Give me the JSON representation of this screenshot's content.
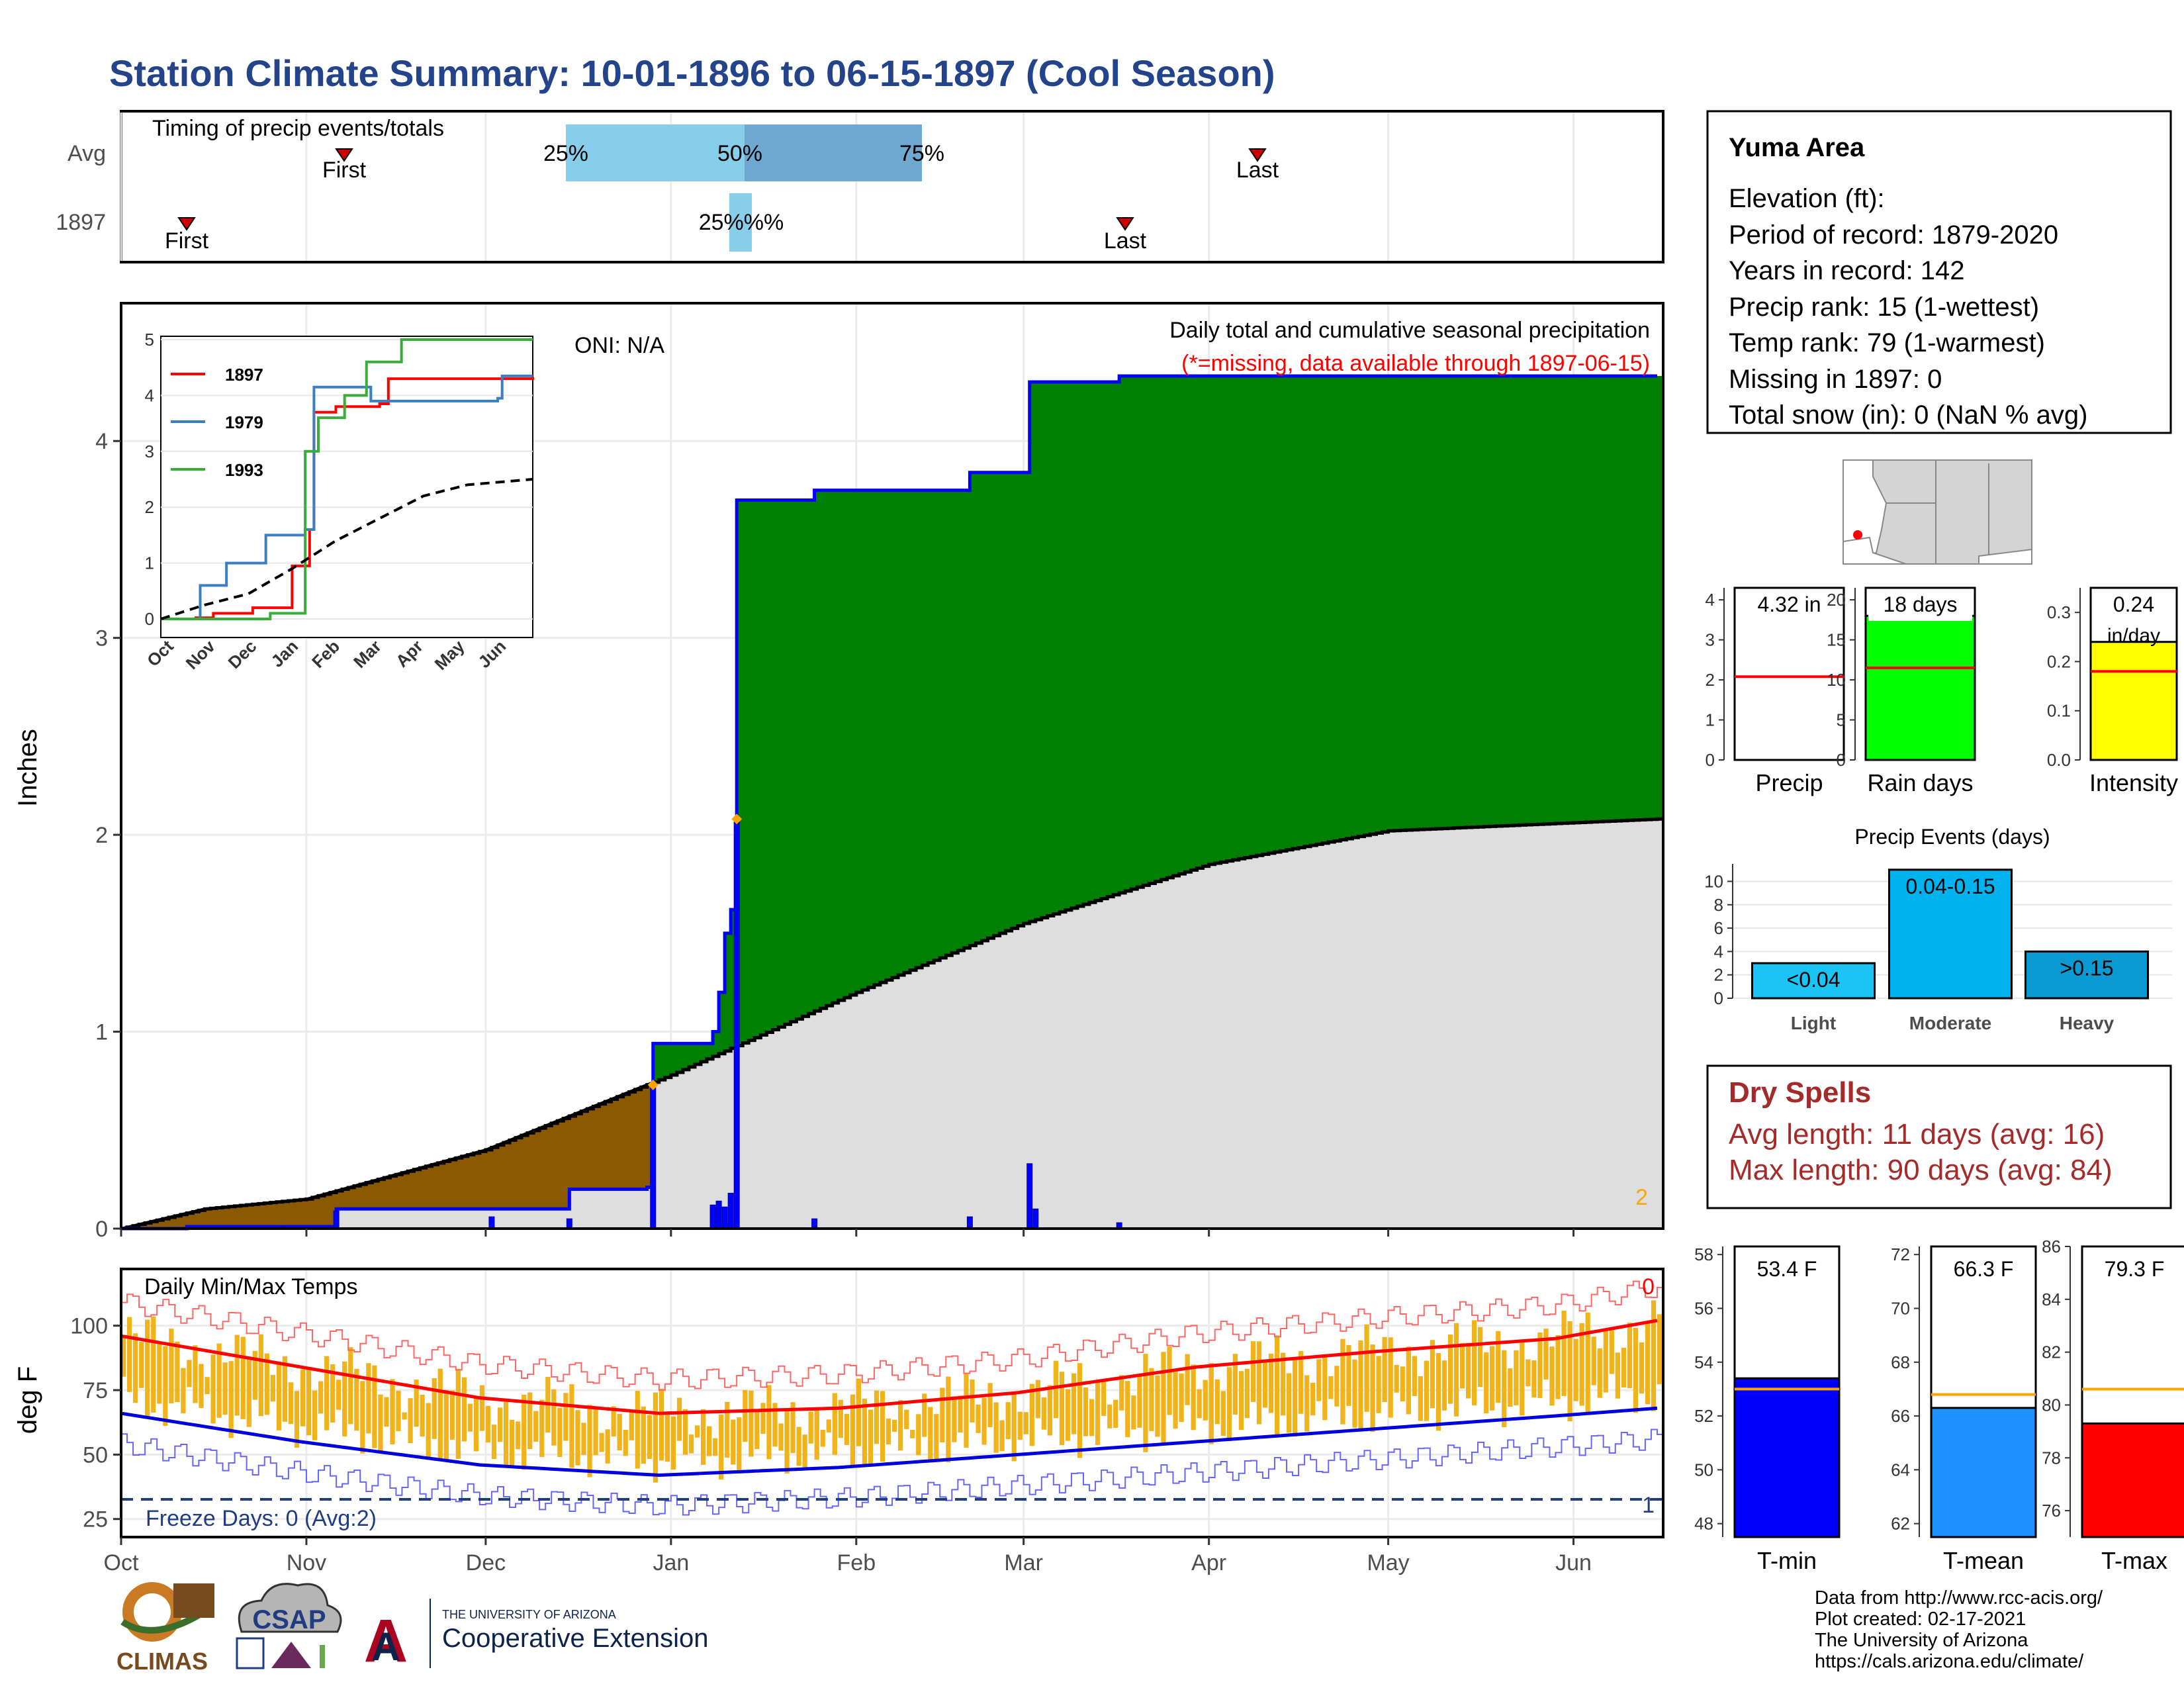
{
  "title": "Station Climate Summary: 10-01-1896 to 06-15-1897 (Cool Season)",
  "colors": {
    "title": "#23448a",
    "cumulative": "#008000",
    "avg_area": "#dedede",
    "deficit": "#8b5a00",
    "daily_precip": "#0000ff",
    "temp_bars": "#f0b31a",
    "tmax_line": "#ff0000",
    "tmin_line": "#0000dd",
    "dry_spells": "#a52a2a",
    "light": "#1bc4f5",
    "moderate": "#00b3ef",
    "heavy": "#0a9ad1"
  },
  "station": {
    "name": "Yuma Area",
    "elevation": "Elevation (ft):",
    "period": "Period of record: 1879-2020",
    "years": "Years in record: 142",
    "precip_rank": "Precip rank: 15 (1-wettest)",
    "temp_rank": "Temp rank: 79 (1-warmest)",
    "missing": "Missing in 1897: 0",
    "snow": "Total snow (in): 0 (NaN % avg)"
  },
  "timing": {
    "title": "Timing of precip events/totals",
    "rows": [
      "Avg",
      "1897"
    ],
    "avg": {
      "first_label": "First",
      "last_label": "Last",
      "p25": "25%",
      "p50": "50%",
      "p75": "75%"
    },
    "year": {
      "first_label": "First",
      "last_label": "Last",
      "p_label": "25%%%"
    }
  },
  "main_panel": {
    "ylabel": "Inches",
    "oni": "ONI: N/A",
    "subtitle": "Daily total and cumulative seasonal precipitation",
    "missing_note": "(*=missing, data available through 1897-06-15)",
    "corner_count": "2",
    "y_ticks": [
      "0",
      "1",
      "2",
      "3",
      "4"
    ]
  },
  "inset": {
    "y_ticks": [
      "0",
      "1",
      "2",
      "3",
      "4",
      "5"
    ],
    "x_ticks": [
      "Oct",
      "Nov",
      "Dec",
      "Jan",
      "Feb",
      "Mar",
      "Apr",
      "May",
      "Jun"
    ],
    "legend": [
      "1897",
      "1979",
      "1993"
    ]
  },
  "temp_panel": {
    "title": "Daily Min/Max Temps",
    "ylabel": "deg F",
    "freeze_label": "Freeze Days: 0 (Avg:2)",
    "top_right": "0",
    "bottom_right": "1",
    "y_ticks": [
      "25",
      "50",
      "75",
      "100"
    ]
  },
  "x_axis": {
    "labels": [
      "Oct",
      "Nov",
      "Dec",
      "Jan",
      "Feb",
      "Mar",
      "Apr",
      "May",
      "Jun"
    ]
  },
  "small_bars": {
    "precip": {
      "label": "Precip",
      "value_text": "4.32 in",
      "y_ticks": [
        "0",
        "1",
        "2",
        "3",
        "4"
      ]
    },
    "raindays": {
      "label": "Rain days",
      "value_text": "18 days",
      "y_ticks": [
        "0",
        "5",
        "10",
        "15",
        "20"
      ]
    },
    "intensity": {
      "label": "Intensity",
      "value_text": "0.24",
      "value_unit": "in/day",
      "y_ticks": [
        "0.0",
        "0.1",
        "0.2",
        "0.3"
      ]
    }
  },
  "events": {
    "title": "Precip Events (days)",
    "y_ticks": [
      "0",
      "2",
      "4",
      "6",
      "8",
      "10"
    ],
    "categories": [
      "Light",
      "Moderate",
      "Heavy"
    ],
    "bar_labels": [
      "<0.04",
      "0.04-0.15",
      ">0.15"
    ]
  },
  "dry_spells": {
    "title": "Dry Spells",
    "avg": "Avg length: 11 days (avg: 16)",
    "max": "Max length: 90 days (avg: 84)"
  },
  "temp_bars": {
    "tmin": {
      "label": "T-min",
      "value_text": "53.4 F",
      "y_ticks": [
        "48",
        "50",
        "52",
        "54",
        "56",
        "58"
      ]
    },
    "tmean": {
      "label": "T-mean",
      "value_text": "66.3 F",
      "y_ticks": [
        "62",
        "64",
        "66",
        "68",
        "70",
        "72"
      ]
    },
    "tmax": {
      "label": "T-max",
      "value_text": "79.3 F",
      "y_ticks": [
        "76",
        "78",
        "80",
        "82",
        "84",
        "86"
      ]
    }
  },
  "credits": {
    "line1": "Data from http://www.rcc-acis.org/",
    "line2": "Plot created: 02-17-2021",
    "line3": "The University of Arizona",
    "line4": "https://cals.arizona.edu/climate/"
  },
  "logos": {
    "climas": "CLIMAS",
    "csap": "CSAP",
    "ua_small": "THE UNIVERSITY OF ARIZONA",
    "ua_big": "Cooperative Extension"
  },
  "chart_data": [
    {
      "type": "area",
      "title": "Daily total and cumulative seasonal precipitation",
      "ylabel": "Inches",
      "ylim": [
        0,
        4.7
      ],
      "x_range": [
        "1896-10-01",
        "1897-06-15"
      ],
      "cumulative_1897": [
        {
          "x": "1896-10-01",
          "y": 0.0
        },
        {
          "x": "1896-10-12",
          "y": 0.01
        },
        {
          "x": "1896-10-28",
          "y": 0.01
        },
        {
          "x": "1896-11-06",
          "y": 0.1
        },
        {
          "x": "1896-12-02",
          "y": 0.1
        },
        {
          "x": "1896-12-15",
          "y": 0.2
        },
        {
          "x": "1896-12-28",
          "y": 0.21
        },
        {
          "x": "1896-12-29",
          "y": 0.94
        },
        {
          "x": "1897-01-07",
          "y": 0.94
        },
        {
          "x": "1897-01-08",
          "y": 1.0
        },
        {
          "x": "1897-01-09",
          "y": 1.2
        },
        {
          "x": "1897-01-10",
          "y": 1.5
        },
        {
          "x": "1897-01-11",
          "y": 1.62
        },
        {
          "x": "1897-01-12",
          "y": 3.7
        },
        {
          "x": "1897-01-25",
          "y": 3.75
        },
        {
          "x": "1897-02-20",
          "y": 3.84
        },
        {
          "x": "1897-03-02",
          "y": 4.3
        },
        {
          "x": "1897-03-17",
          "y": 4.33
        },
        {
          "x": "1897-06-15",
          "y": 4.33
        }
      ],
      "average_cumulative": [
        {
          "x": "1896-10-01",
          "y": 0.0
        },
        {
          "x": "1896-10-15",
          "y": 0.1
        },
        {
          "x": "1896-11-01",
          "y": 0.15
        },
        {
          "x": "1896-12-01",
          "y": 0.4
        },
        {
          "x": "1897-01-01",
          "y": 0.78
        },
        {
          "x": "1897-02-01",
          "y": 1.2
        },
        {
          "x": "1897-03-01",
          "y": 1.55
        },
        {
          "x": "1897-04-01",
          "y": 1.85
        },
        {
          "x": "1897-05-01",
          "y": 2.02
        },
        {
          "x": "1897-06-15",
          "y": 2.08
        }
      ],
      "daily_precip": [
        {
          "x": "1896-10-28",
          "y": 0.01
        },
        {
          "x": "1896-11-06",
          "y": 0.09
        },
        {
          "x": "1896-12-02",
          "y": 0.06
        },
        {
          "x": "1896-12-15",
          "y": 0.05
        },
        {
          "x": "1896-12-29",
          "y": 0.73
        },
        {
          "x": "1897-01-08",
          "y": 0.12
        },
        {
          "x": "1897-01-09",
          "y": 0.14
        },
        {
          "x": "1897-01-10",
          "y": 0.11
        },
        {
          "x": "1897-01-11",
          "y": 0.18
        },
        {
          "x": "1897-01-12",
          "y": 2.08
        },
        {
          "x": "1897-01-25",
          "y": 0.05
        },
        {
          "x": "1897-02-20",
          "y": 0.06
        },
        {
          "x": "1897-03-02",
          "y": 0.33
        },
        {
          "x": "1897-03-03",
          "y": 0.1
        },
        {
          "x": "1897-03-17",
          "y": 0.03
        }
      ],
      "markers": [
        {
          "x": "1896-12-29",
          "y": 0.73
        },
        {
          "x": "1897-01-12",
          "y": 2.08
        }
      ]
    },
    {
      "type": "line",
      "title": "",
      "ylim": [
        0,
        5
      ],
      "x_ticks": [
        "Oct",
        "Nov",
        "Dec",
        "Jan",
        "Feb",
        "Mar",
        "Apr",
        "May",
        "Jun"
      ],
      "series": [
        {
          "name": "1897",
          "color": "#ff0000",
          "points": [
            [
              0,
              0
            ],
            [
              0.8,
              0.02
            ],
            [
              1.2,
              0.1
            ],
            [
              2.1,
              0.2
            ],
            [
              3.0,
              0.95
            ],
            [
              3.4,
              1.6
            ],
            [
              3.5,
              3.7
            ],
            [
              4.0,
              3.8
            ],
            [
              5.0,
              3.85
            ],
            [
              5.2,
              4.3
            ],
            [
              8.5,
              4.33
            ]
          ]
        },
        {
          "name": "1979",
          "color": "#3a7fc1",
          "points": [
            [
              0,
              0
            ],
            [
              0.9,
              0.6
            ],
            [
              1.5,
              1.0
            ],
            [
              2.4,
              1.5
            ],
            [
              3.3,
              1.6
            ],
            [
              3.5,
              4.15
            ],
            [
              4.8,
              3.9
            ],
            [
              7.7,
              3.95
            ],
            [
              7.8,
              4.35
            ],
            [
              8.5,
              4.35
            ]
          ]
        },
        {
          "name": "1993",
          "color": "#39ac39",
          "points": [
            [
              0,
              0
            ],
            [
              2.5,
              0.1
            ],
            [
              3.3,
              3.0
            ],
            [
              3.6,
              3.6
            ],
            [
              4.2,
              4.0
            ],
            [
              4.7,
              4.6
            ],
            [
              5.5,
              5.0
            ],
            [
              8.5,
              5.0
            ]
          ]
        },
        {
          "name": "",
          "color": "#000000",
          "dashed": true,
          "points": [
            [
              0,
              0
            ],
            [
              1,
              0.25
            ],
            [
              2,
              0.45
            ],
            [
              3,
              0.9
            ],
            [
              4,
              1.4
            ],
            [
              5,
              1.8
            ],
            [
              6,
              2.2
            ],
            [
              7,
              2.4
            ],
            [
              8.5,
              2.5
            ]
          ]
        }
      ]
    },
    {
      "type": "line",
      "title": "Daily Min/Max Temps",
      "ylabel": "deg F",
      "ylim": [
        20,
        120
      ],
      "x_range": [
        "1896-10-01",
        "1897-06-15"
      ],
      "series": [
        {
          "name": "",
          "color": "#ff0000",
          "points": [
            [
              0,
              96
            ],
            [
              30,
              84
            ],
            [
              60,
              72
            ],
            [
              90,
              66
            ],
            [
              120,
              68
            ],
            [
              150,
              74
            ],
            [
              180,
              84
            ],
            [
              210,
              90
            ],
            [
              240,
              95
            ],
            [
              257,
              102
            ]
          ]
        },
        {
          "name": "",
          "color": "#0000dd",
          "points": [
            [
              0,
              66
            ],
            [
              30,
              55
            ],
            [
              60,
              46
            ],
            [
              90,
              42
            ],
            [
              120,
              45
            ],
            [
              150,
              50
            ],
            [
              180,
              55
            ],
            [
              210,
              60
            ],
            [
              240,
              65
            ],
            [
              257,
              68
            ]
          ]
        }
      ],
      "freeze_line": 32
    },
    {
      "type": "bar",
      "categories": [
        "Precip"
      ],
      "values": [
        4.32
      ],
      "avg": 2.08,
      "ylim": [
        0,
        4.3
      ]
    },
    {
      "type": "bar",
      "categories": [
        "Rain days"
      ],
      "values": [
        18
      ],
      "avg": 11.5,
      "ylim": [
        0,
        21.5
      ]
    },
    {
      "type": "bar",
      "categories": [
        "Intensity"
      ],
      "values": [
        0.24
      ],
      "avg": 0.18,
      "ylim": [
        0,
        0.35
      ]
    },
    {
      "type": "bar",
      "title": "Precip Events (days)",
      "categories": [
        "Light",
        "Moderate",
        "Heavy"
      ],
      "values": [
        3,
        11,
        4
      ],
      "ylim": [
        0,
        11.5
      ]
    },
    {
      "type": "bar",
      "categories": [
        "T-min"
      ],
      "values": [
        53.4
      ],
      "avg": 53.0,
      "ylim": [
        47.5,
        58.3
      ]
    },
    {
      "type": "bar",
      "categories": [
        "T-mean"
      ],
      "values": [
        66.3
      ],
      "avg": 66.8,
      "ylim": [
        61.5,
        72.3
      ]
    },
    {
      "type": "bar",
      "categories": [
        "T-max"
      ],
      "values": [
        79.3
      ],
      "avg": 80.6,
      "ylim": [
        75.0,
        86.0
      ]
    }
  ]
}
